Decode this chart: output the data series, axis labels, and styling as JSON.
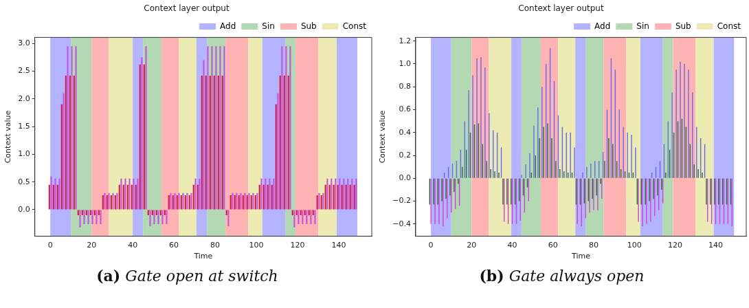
{
  "chart_data": [
    {
      "type": "bar",
      "title": "Context layer output",
      "xlabel": "Time",
      "ylabel": "Context value",
      "x": [
        0,
        2,
        4,
        6,
        8,
        10,
        12,
        14,
        16,
        18,
        20,
        22,
        24,
        26,
        28,
        30,
        32,
        34,
        36,
        38,
        40,
        42,
        44,
        46,
        48,
        50,
        52,
        54,
        56,
        58,
        60,
        62,
        64,
        66,
        68,
        70,
        72,
        74,
        76,
        78,
        80,
        82,
        84,
        86,
        88,
        90,
        92,
        94,
        96,
        98,
        100,
        102,
        104,
        106,
        108,
        110,
        112,
        114,
        116,
        118,
        120,
        122,
        124,
        126,
        128,
        130,
        132,
        134,
        136,
        138,
        140,
        142,
        144,
        146,
        148
      ],
      "series": [
        {
          "color": "#c455e0",
          "values": [
            0.6,
            0.56,
            0.56,
            2.1,
            2.95,
            2.95,
            2.95,
            -0.32,
            -0.26,
            -0.26,
            -0.26,
            -0.26,
            -0.26,
            0.3,
            0.3,
            0.3,
            0.3,
            0.56,
            0.56,
            0.56,
            0.56,
            0.56,
            2.75,
            2.95,
            -0.3,
            -0.26,
            -0.26,
            -0.26,
            -0.26,
            0.3,
            0.3,
            0.3,
            0.3,
            0.3,
            0.3,
            0.56,
            0.56,
            2.7,
            2.95,
            2.95,
            2.95,
            2.95,
            2.95,
            -0.3,
            0.3,
            0.3,
            0.3,
            0.3,
            0.3,
            0.3,
            0.3,
            0.56,
            0.56,
            0.56,
            0.56,
            2.1,
            2.95,
            2.95,
            2.95,
            -0.32,
            -0.26,
            -0.26,
            -0.26,
            -0.26,
            -0.26,
            0.3,
            0.3,
            0.56,
            0.56,
            0.56,
            0.56,
            0.56,
            0.56,
            0.56,
            0.56
          ]
        },
        {
          "color": "#d81b45",
          "values": [
            0.45,
            0.45,
            0.45,
            1.9,
            2.42,
            2.42,
            2.42,
            -0.1,
            -0.1,
            -0.1,
            -0.1,
            -0.1,
            -0.1,
            0.26,
            0.26,
            0.26,
            0.26,
            0.45,
            0.45,
            0.45,
            0.45,
            0.45,
            2.62,
            2.62,
            -0.1,
            -0.1,
            -0.1,
            -0.1,
            -0.1,
            0.26,
            0.26,
            0.26,
            0.26,
            0.26,
            0.26,
            0.45,
            0.45,
            2.42,
            2.42,
            2.42,
            2.42,
            2.42,
            2.42,
            -0.1,
            0.26,
            0.26,
            0.26,
            0.26,
            0.26,
            0.26,
            0.26,
            0.45,
            0.45,
            0.45,
            0.45,
            1.9,
            2.42,
            2.42,
            2.42,
            -0.1,
            -0.1,
            -0.1,
            -0.1,
            -0.1,
            -0.1,
            0.26,
            0.26,
            0.45,
            0.45,
            0.45,
            0.45,
            0.45,
            0.45,
            0.45,
            0.45
          ]
        }
      ],
      "bands": [
        {
          "axis": "x",
          "from": 0,
          "to": 10,
          "label": "Add",
          "color": "#b3b3ff"
        },
        {
          "axis": "x",
          "from": 10,
          "to": 20,
          "label": "Sin",
          "color": "#b3d9b3"
        },
        {
          "axis": "x",
          "from": 20,
          "to": 28.5,
          "label": "Sub",
          "color": "#ffb3b3"
        },
        {
          "axis": "x",
          "from": 28.5,
          "to": 40,
          "label": "Const",
          "color": "#ebebb3"
        },
        {
          "axis": "x",
          "from": 40,
          "to": 45,
          "color": "#b3b3ff"
        },
        {
          "axis": "x",
          "from": 45,
          "to": 54,
          "color": "#b3d9b3"
        },
        {
          "axis": "x",
          "from": 54,
          "to": 62.5,
          "color": "#ffb3b3"
        },
        {
          "axis": "x",
          "from": 62.5,
          "to": 71,
          "color": "#ebebb3"
        },
        {
          "axis": "x",
          "from": 71,
          "to": 76,
          "color": "#b3b3ff"
        },
        {
          "axis": "x",
          "from": 76,
          "to": 85,
          "color": "#b3d9b3"
        },
        {
          "axis": "x",
          "from": 85,
          "to": 96,
          "color": "#ffb3b3"
        },
        {
          "axis": "x",
          "from": 96,
          "to": 103,
          "color": "#ebebb3"
        },
        {
          "axis": "x",
          "from": 103,
          "to": 114,
          "color": "#b3b3ff"
        },
        {
          "axis": "x",
          "from": 114,
          "to": 119,
          "color": "#b3d9b3"
        },
        {
          "axis": "x",
          "from": 119,
          "to": 130,
          "color": "#ffb3b3"
        },
        {
          "axis": "x",
          "from": 130,
          "to": 139,
          "color": "#ebebb3"
        },
        {
          "axis": "x",
          "from": 139,
          "to": 149,
          "color": "#b3b3ff"
        }
      ],
      "xlim": [
        -7.5,
        156
      ],
      "xticks": [
        0,
        20,
        40,
        60,
        80,
        100,
        120,
        140
      ],
      "ylim": [
        -0.48,
        3.11
      ],
      "yticks": [
        {
          "value": 0,
          "label": "0.0"
        },
        {
          "value": 0.5,
          "label": "0.5"
        },
        {
          "value": 1,
          "label": "1.0"
        },
        {
          "value": 1.5,
          "label": "1.5"
        },
        {
          "value": 2,
          "label": "2.0"
        },
        {
          "value": 2.5,
          "label": "2.5"
        },
        {
          "value": 3,
          "label": "3.0"
        }
      ],
      "legend": "top right",
      "annotations": [
        "(a) Gate open at switch"
      ]
    },
    {
      "type": "bar",
      "title": "Context layer output",
      "xlabel": "Time",
      "ylabel": "Context value",
      "x": [
        0,
        2,
        4,
        6,
        8,
        10,
        12,
        14,
        16,
        18,
        20,
        22,
        24,
        26,
        28,
        30,
        32,
        34,
        36,
        38,
        40,
        42,
        44,
        46,
        48,
        50,
        52,
        54,
        56,
        58,
        60,
        62,
        64,
        66,
        68,
        70,
        72,
        74,
        76,
        78,
        80,
        82,
        84,
        86,
        88,
        90,
        92,
        94,
        96,
        98,
        100,
        102,
        104,
        106,
        108,
        110,
        112,
        114,
        116,
        118,
        120,
        122,
        124,
        126,
        128,
        130,
        132,
        134,
        136,
        138,
        140,
        142,
        144,
        146,
        148
      ],
      "series": [
        {
          "color": "#6a6af0",
          "values": [
            0,
            0,
            0,
            0.05,
            0.1,
            0.13,
            0.15,
            0.25,
            0.5,
            0.77,
            0.9,
            1.05,
            1.06,
            0.97,
            0.57,
            0.42,
            0.4,
            0.27,
            0,
            0,
            0,
            0,
            0.03,
            0.12,
            0.22,
            0.46,
            0.62,
            0.8,
            1.0,
            1.14,
            0.85,
            0.55,
            0.45,
            0.4,
            0.4,
            0.27,
            0,
            0.05,
            0.1,
            0.13,
            0.15,
            0.15,
            0.23,
            0.6,
            1.05,
            0.95,
            0.6,
            0.45,
            0.4,
            0.38,
            0.27,
            0,
            0,
            0,
            0.05,
            0.1,
            0.15,
            0.3,
            0.5,
            0.75,
            0.95,
            1.02,
            1.0,
            0.95,
            0.75,
            0.45,
            0.35,
            0.3,
            0,
            0,
            0,
            0,
            0,
            0,
            0
          ]
        },
        {
          "color": "#cc44dd",
          "values": [
            -0.4,
            -0.4,
            -0.4,
            -0.42,
            -0.35,
            -0.3,
            -0.27,
            -0.24,
            null,
            null,
            null,
            null,
            null,
            null,
            null,
            null,
            null,
            null,
            -0.38,
            -0.4,
            -0.4,
            -0.4,
            -0.37,
            -0.3,
            -0.2,
            null,
            null,
            null,
            null,
            null,
            null,
            null,
            null,
            null,
            null,
            null,
            -0.4,
            -0.42,
            -0.35,
            -0.3,
            -0.28,
            -0.28,
            -0.18,
            null,
            null,
            null,
            null,
            null,
            null,
            null,
            null,
            -0.38,
            -0.42,
            -0.4,
            -0.38,
            -0.33,
            -0.28,
            -0.22,
            null,
            null,
            null,
            null,
            null,
            null,
            null,
            null,
            null,
            null,
            -0.38,
            -0.4,
            -0.4,
            -0.4,
            -0.4,
            -0.4,
            -0.42
          ]
        },
        {
          "color": "#2e6b30",
          "values": [
            -0.23,
            -0.23,
            -0.23,
            -0.2,
            -0.18,
            -0.15,
            -0.12,
            -0.05,
            0.1,
            0.25,
            0.4,
            0.47,
            0.48,
            0.3,
            0.15,
            0.08,
            0.06,
            0.05,
            -0.23,
            -0.23,
            -0.23,
            -0.23,
            -0.2,
            -0.15,
            -0.08,
            0.05,
            0.2,
            0.35,
            0.45,
            0.48,
            0.35,
            0.15,
            0.08,
            0.06,
            0.05,
            0.05,
            -0.23,
            -0.23,
            -0.22,
            -0.2,
            -0.18,
            -0.15,
            -0.05,
            0.15,
            0.35,
            0.3,
            0.15,
            0.08,
            0.06,
            0.05,
            0.05,
            -0.23,
            -0.23,
            -0.23,
            -0.2,
            -0.18,
            -0.15,
            -0.1,
            0.05,
            0.25,
            0.4,
            0.5,
            0.52,
            0.45,
            0.3,
            0.12,
            0.08,
            0.05,
            -0.23,
            -0.23,
            -0.23,
            -0.23,
            -0.23,
            -0.23,
            -0.23
          ]
        }
      ],
      "bands": [
        {
          "axis": "x",
          "from": 0,
          "to": 10,
          "label": "Add",
          "color": "#b3b3ff"
        },
        {
          "axis": "x",
          "from": 10,
          "to": 20,
          "label": "Sin",
          "color": "#b3d9b3"
        },
        {
          "axis": "x",
          "from": 20,
          "to": 28.5,
          "label": "Sub",
          "color": "#ffb3b3"
        },
        {
          "axis": "x",
          "from": 28.5,
          "to": 39.5,
          "label": "Const",
          "color": "#ebebb3"
        },
        {
          "axis": "x",
          "from": 39.5,
          "to": 44.5,
          "color": "#b3b3ff"
        },
        {
          "axis": "x",
          "from": 44.5,
          "to": 54,
          "color": "#b3d9b3"
        },
        {
          "axis": "x",
          "from": 54,
          "to": 62.5,
          "color": "#ffb3b3"
        },
        {
          "axis": "x",
          "from": 62.5,
          "to": 71,
          "color": "#ebebb3"
        },
        {
          "axis": "x",
          "from": 71,
          "to": 76,
          "color": "#b3b3ff"
        },
        {
          "axis": "x",
          "from": 76,
          "to": 85,
          "color": "#b3d9b3"
        },
        {
          "axis": "x",
          "from": 85,
          "to": 96,
          "color": "#ffb3b3"
        },
        {
          "axis": "x",
          "from": 96,
          "to": 103,
          "color": "#ebebb3"
        },
        {
          "axis": "x",
          "from": 103,
          "to": 114,
          "color": "#b3b3ff"
        },
        {
          "axis": "x",
          "from": 114,
          "to": 119,
          "color": "#b3d9b3"
        },
        {
          "axis": "x",
          "from": 119,
          "to": 130,
          "color": "#ffb3b3"
        },
        {
          "axis": "x",
          "from": 130,
          "to": 139,
          "color": "#ebebb3"
        },
        {
          "axis": "x",
          "from": 139,
          "to": 149,
          "color": "#b3b3ff"
        }
      ],
      "xlim": [
        -7.5,
        155
      ],
      "xticks": [
        0,
        20,
        40,
        60,
        80,
        100,
        120,
        140
      ],
      "ylim": [
        -0.507,
        1.232
      ],
      "yticks": [
        {
          "value": -0.4,
          "label": "−0.4"
        },
        {
          "value": -0.2,
          "label": "−0.2"
        },
        {
          "value": 0,
          "label": "0.0"
        },
        {
          "value": 0.2,
          "label": "0.2"
        },
        {
          "value": 0.4,
          "label": "0.4"
        },
        {
          "value": 0.6,
          "label": "0.6"
        },
        {
          "value": 0.8,
          "label": "0.8"
        },
        {
          "value": 1,
          "label": "1.0"
        },
        {
          "value": 1.2,
          "label": "1.2"
        }
      ],
      "legend": "top right",
      "annotations": [
        "(b) Gate always open"
      ]
    }
  ]
}
